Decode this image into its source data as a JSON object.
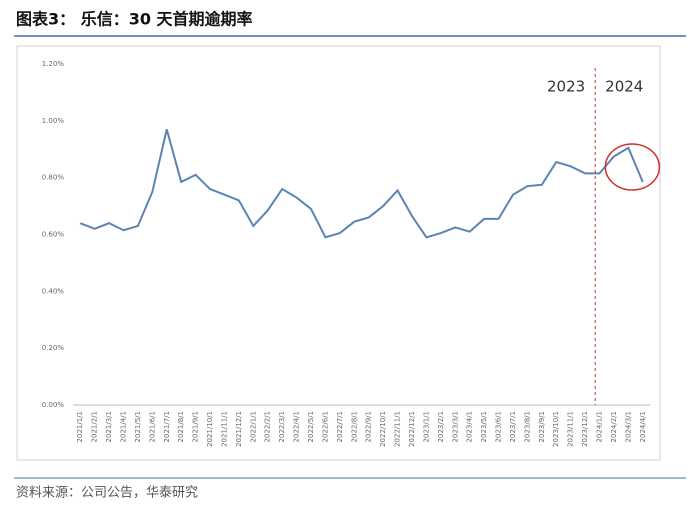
{
  "chart_data": {
    "type": "line",
    "title": "图表3：  乐信：30 天首期逾期率",
    "source": "资料来源：公司公告，华泰研究",
    "annotations": [
      "2023",
      "2024"
    ],
    "categories": [
      "2021/1/1",
      "2021/2/1",
      "2021/3/1",
      "2021/4/1",
      "2021/5/1",
      "2021/6/1",
      "2021/7/1",
      "2021/8/1",
      "2021/9/1",
      "2021/10/1",
      "2021/11/1",
      "2021/12/1",
      "2022/1/1",
      "2022/2/1",
      "2022/3/1",
      "2022/4/1",
      "2022/5/1",
      "2022/6/1",
      "2022/7/1",
      "2022/8/1",
      "2022/9/1",
      "2022/10/1",
      "2022/11/1",
      "2022/12/1",
      "2023/1/1",
      "2023/2/1",
      "2023/3/1",
      "2023/4/1",
      "2023/5/1",
      "2023/6/1",
      "2023/7/1",
      "2023/8/1",
      "2023/9/1",
      "2023/10/1",
      "2023/11/1",
      "2023/12/1",
      "2024/1/1",
      "2024/2/1",
      "2024/3/1",
      "2024/4/1"
    ],
    "series": [
      {
        "color": "#5b84b4",
        "values": [
          0.64,
          0.62,
          0.64,
          0.615,
          0.63,
          0.75,
          0.97,
          0.785,
          0.81,
          0.76,
          0.74,
          0.72,
          0.63,
          0.685,
          0.76,
          0.73,
          0.69,
          0.59,
          0.605,
          0.645,
          0.66,
          0.7,
          0.755,
          0.665,
          0.59,
          0.605,
          0.625,
          0.61,
          0.655,
          0.655,
          0.74,
          0.77,
          0.775,
          0.855,
          0.84,
          0.815,
          0.815,
          0.875,
          0.905,
          0.785
        ]
      }
    ],
    "ylim": [
      0,
      1.2
    ],
    "yticks": [
      {
        "value": 0,
        "label": "0.00%"
      },
      {
        "value": 0.2,
        "label": "0.20%"
      },
      {
        "value": 0.4,
        "label": "0.40%"
      },
      {
        "value": 0.6,
        "label": "0.60%"
      },
      {
        "value": 0.8,
        "label": "0.80%"
      },
      {
        "value": 1.0,
        "label": "1.00%"
      },
      {
        "value": 1.2,
        "label": "1.20%"
      }
    ],
    "grid": false
  }
}
